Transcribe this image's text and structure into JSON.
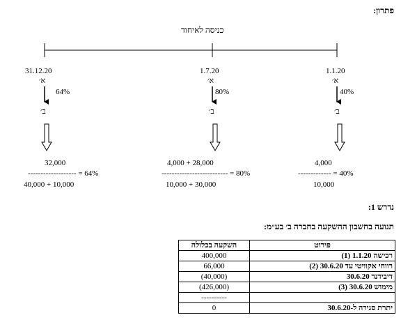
{
  "heading_solution": "פתרון:",
  "timeline": {
    "entry_label": "כניסה לאיחוד",
    "points": [
      {
        "date": "31.12.20",
        "pct": "64%",
        "formula_top": "32,000",
        "formula_dashes": "------------------- = 64%",
        "formula_bottom": "40,000 + 10,000"
      },
      {
        "date": "1.7.20",
        "pct": "80%",
        "formula_top": "4,000 + 28,000",
        "formula_dashes": "-------------------------- = 80%",
        "formula_bottom": "10,000 + 30,000"
      },
      {
        "date": "1.1.20",
        "pct": "40%",
        "formula_top": "4,000",
        "formula_dashes": "------------- = 40%",
        "formula_bottom": "10,000"
      }
    ],
    "company_a": "א׳",
    "company_b": "ב׳"
  },
  "required_label": "נדרש 1:",
  "table_title": "תנועה בחשבון ההשקעה בחברה ב׳ בע״מ:",
  "table": {
    "headers": [
      "פירוט",
      "השקעה בכלולה"
    ],
    "rows": [
      {
        "desc": "רכישה 1.1.20 (1)",
        "amount": "400,000"
      },
      {
        "desc": "רווחי אקוויטי עד 30.6.20 (2)",
        "amount": "66,000"
      },
      {
        "desc": "דיבידנד 30.6.20",
        "amount": "(40,000)"
      },
      {
        "desc": "מימוש 30.6.20 (3)",
        "amount": "(426,000)"
      },
      {
        "desc": "",
        "amount": "----------"
      },
      {
        "desc": "יתרת סגירה ל-30.6.20",
        "amount": "0"
      }
    ]
  }
}
